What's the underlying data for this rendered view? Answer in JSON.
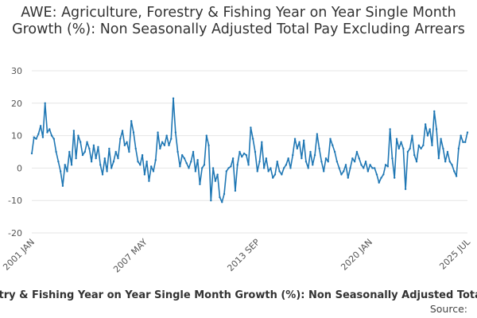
{
  "chart_data": {
    "type": "line",
    "title": "AWE: Agriculture, Forestry & Fishing Year on Year Single Month Growth (%): Non Seasonally Adjusted Total Pay Excluding Arrears",
    "xlabel": "",
    "ylabel": "",
    "ylim": [
      -20,
      30
    ],
    "yticks": [
      30,
      20,
      10,
      0,
      -10,
      -20
    ],
    "xticks": [
      "2001 JAN",
      "2007 MAY",
      "2013 SEP",
      "2020 JAN",
      "2025 JUL"
    ],
    "grid": true,
    "legend": "bottom",
    "line_color": "#1f77b4",
    "series": [
      {
        "name": "AWE: Agriculture, Forestry & Fishing Year on Year Single Month Growth (%): Non Seasonally Adjusted Total Pay Excluding Arrears",
        "x_start": "2001-01",
        "x_end": "2025-07",
        "values": [
          4.5,
          9.5,
          9.0,
          10.5,
          13.0,
          9.5,
          20.0,
          11.0,
          12.0,
          10.0,
          9.0,
          5.0,
          2.0,
          -1.0,
          -5.5,
          1.0,
          -1.0,
          5.0,
          1.0,
          11.5,
          3.0,
          10.0,
          8.0,
          4.0,
          5.0,
          8.0,
          6.0,
          2.0,
          7.0,
          3.0,
          6.5,
          1.0,
          -2.0,
          3.0,
          -1.0,
          6.0,
          0.0,
          2.0,
          5.0,
          3.0,
          9.0,
          11.5,
          7.0,
          8.0,
          5.0,
          14.5,
          11.0,
          6.0,
          2.0,
          1.0,
          4.0,
          -2.0,
          2.0,
          -4.0,
          0.5,
          -1.0,
          2.5,
          11.0,
          6.0,
          8.0,
          7.0,
          10.0,
          7.0,
          9.0,
          21.5,
          11.0,
          5.0,
          0.5,
          4.0,
          3.0,
          1.5,
          0.0,
          2.0,
          5.0,
          -1.0,
          2.5,
          -5.0,
          0.0,
          1.0,
          10.0,
          7.0,
          -10.0,
          0.0,
          -4.0,
          -2.0,
          -9.0,
          -10.5,
          -8.0,
          -1.0,
          0.0,
          0.5,
          3.0,
          -7.0,
          1.0,
          5.0,
          3.5,
          4.5,
          4.0,
          1.0,
          12.5,
          9.0,
          5.0,
          -1.0,
          2.0,
          8.0,
          0.0,
          3.0,
          -1.0,
          0.0,
          -3.0,
          -2.0,
          2.0,
          -1.0,
          -2.0,
          0.0,
          1.0,
          3.0,
          0.0,
          4.0,
          9.0,
          6.0,
          8.0,
          3.0,
          8.5,
          2.0,
          0.0,
          5.0,
          1.0,
          4.0,
          10.5,
          6.0,
          2.0,
          -1.0,
          3.0,
          2.0,
          9.0,
          7.0,
          5.0,
          2.0,
          0.0,
          -2.0,
          -1.0,
          1.0,
          -3.0,
          0.0,
          3.0,
          2.0,
          5.0,
          3.0,
          1.0,
          0.0,
          2.0,
          -1.0,
          1.0,
          0.0,
          0.0,
          -2.0,
          -4.5,
          -3.0,
          -2.0,
          1.0,
          0.5,
          12.0,
          3.0,
          -3.0,
          9.0,
          6.0,
          8.0,
          6.0,
          -6.5,
          5.0,
          6.0,
          10.0,
          4.0,
          2.0,
          7.0,
          6.0,
          7.0,
          13.5,
          10.0,
          12.0,
          7.0,
          17.5,
          12.0,
          3.0,
          9.0,
          6.0,
          2.0,
          5.0,
          2.0,
          1.0,
          -1.0,
          -2.5,
          6.0,
          10.0,
          8.0,
          8.0,
          11.0
        ]
      }
    ],
    "source_label": "Source:"
  }
}
